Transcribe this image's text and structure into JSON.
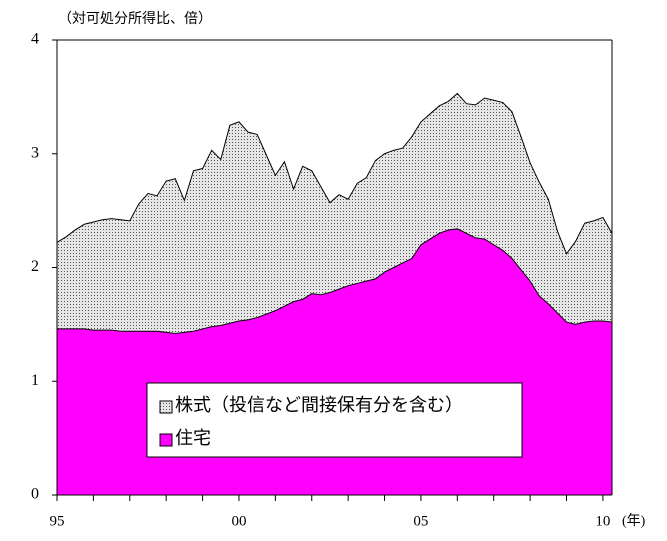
{
  "chart_data": {
    "type": "stacked_area",
    "y_axis_label": "（対可処分所得比、倍）",
    "x_axis_label": "(年)",
    "x": [
      1995.0,
      1995.25,
      1995.5,
      1995.75,
      1996.0,
      1996.25,
      1996.5,
      1996.75,
      1997.0,
      1997.25,
      1997.5,
      1997.75,
      1998.0,
      1998.25,
      1998.5,
      1998.75,
      1999.0,
      1999.25,
      1999.5,
      1999.75,
      2000.0,
      2000.25,
      2000.5,
      2000.75,
      2001.0,
      2001.25,
      2001.5,
      2001.75,
      2002.0,
      2002.25,
      2002.5,
      2002.75,
      2003.0,
      2003.25,
      2003.5,
      2003.75,
      2004.0,
      2004.25,
      2004.5,
      2004.75,
      2005.0,
      2005.25,
      2005.5,
      2005.75,
      2006.0,
      2006.25,
      2006.5,
      2006.75,
      2007.0,
      2007.25,
      2007.5,
      2007.75,
      2008.0,
      2008.25,
      2008.5,
      2008.75,
      2009.0,
      2009.25,
      2009.5,
      2009.75,
      2010.0,
      2010.25
    ],
    "series": [
      {
        "name": "住宅",
        "color": "#ff00ff",
        "values": [
          1.46,
          1.46,
          1.46,
          1.46,
          1.45,
          1.45,
          1.45,
          1.44,
          1.44,
          1.44,
          1.44,
          1.44,
          1.43,
          1.42,
          1.43,
          1.44,
          1.46,
          1.48,
          1.49,
          1.51,
          1.53,
          1.54,
          1.56,
          1.59,
          1.62,
          1.66,
          1.7,
          1.72,
          1.77,
          1.76,
          1.78,
          1.81,
          1.84,
          1.86,
          1.88,
          1.9,
          1.96,
          2.0,
          2.04,
          2.08,
          2.2,
          2.25,
          2.3,
          2.33,
          2.34,
          2.3,
          2.26,
          2.25,
          2.2,
          2.15,
          2.08,
          1.98,
          1.88,
          1.75,
          1.68,
          1.6,
          1.52,
          1.5,
          1.52,
          1.53,
          1.53,
          1.52
        ]
      },
      {
        "name": "株式（投信など間接保有分を含む）",
        "color": "#d8d8d8",
        "pattern": "dots",
        "values": [
          0.76,
          0.81,
          0.87,
          0.92,
          0.95,
          0.97,
          0.98,
          0.98,
          0.97,
          1.12,
          1.21,
          1.19,
          1.33,
          1.36,
          1.16,
          1.41,
          1.41,
          1.55,
          1.46,
          1.74,
          1.75,
          1.65,
          1.61,
          1.4,
          1.19,
          1.27,
          0.99,
          1.17,
          1.08,
          0.95,
          0.79,
          0.83,
          0.76,
          0.88,
          0.91,
          1.04,
          1.04,
          1.03,
          1.01,
          1.07,
          1.08,
          1.1,
          1.12,
          1.13,
          1.19,
          1.14,
          1.17,
          1.24,
          1.27,
          1.3,
          1.29,
          1.17,
          1.04,
          1.0,
          0.92,
          0.72,
          0.6,
          0.73,
          0.87,
          0.88,
          0.91,
          0.78
        ]
      }
    ],
    "xlim": [
      1995,
      2010.25
    ],
    "xticks": [
      {
        "value": 1995,
        "label": "95"
      },
      {
        "value": 2000,
        "label": "00"
      },
      {
        "value": 2005,
        "label": "05"
      },
      {
        "value": 2010,
        "label": "10"
      }
    ],
    "xminor_ticks": [
      1996,
      1997,
      1998,
      1999,
      2001,
      2002,
      2003,
      2004,
      2006,
      2007,
      2008,
      2009
    ],
    "ylim": [
      0,
      4
    ],
    "yticks": [
      0,
      1,
      2,
      3,
      4
    ],
    "grid": false,
    "legend": "bottom-center"
  }
}
